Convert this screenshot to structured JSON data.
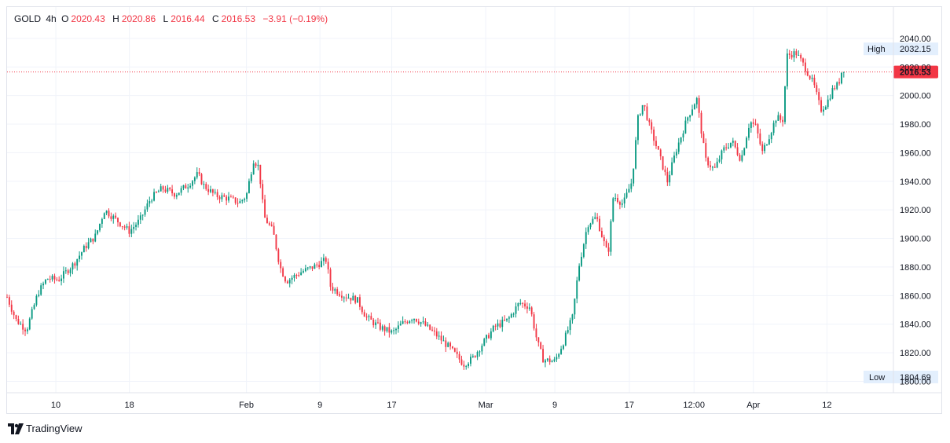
{
  "header": {
    "symbol": "GOLD",
    "interval": "4h",
    "o_label": "O",
    "o_value": "2020.43",
    "h_label": "H",
    "h_value": "2020.86",
    "l_label": "L",
    "l_value": "2016.44",
    "c_label": "C",
    "c_value": "2016.53",
    "change": "−3.91 (−0.19%)"
  },
  "brand": {
    "text": "TradingView"
  },
  "colors": {
    "up": "#089981",
    "down": "#f23645",
    "grid": "#f0f3fa",
    "label_bg": "#e3effd"
  },
  "chart_data": {
    "type": "candlestick",
    "ylim": [
      1792,
      2046
    ],
    "y_ticks": [
      "1800.00",
      "1820.00",
      "1840.00",
      "1860.00",
      "1880.00",
      "1900.00",
      "1920.00",
      "1940.00",
      "1960.00",
      "1980.00",
      "2000.00",
      "2020.00",
      "2040.00"
    ],
    "x_ticks": [
      {
        "label": "10",
        "t": 0.055
      },
      {
        "label": "18",
        "t": 0.138
      },
      {
        "label": "Feb",
        "t": 0.27
      },
      {
        "label": "9",
        "t": 0.353
      },
      {
        "label": "17",
        "t": 0.434
      },
      {
        "label": "Mar",
        "t": 0.54
      },
      {
        "label": "9",
        "t": 0.618
      },
      {
        "label": "17",
        "t": 0.702
      },
      {
        "label": "12:00",
        "t": 0.775
      },
      {
        "label": "Apr",
        "t": 0.842
      },
      {
        "label": "12",
        "t": 0.925
      }
    ],
    "price_path": [
      [
        0.0,
        1859
      ],
      [
        0.01,
        1843
      ],
      [
        0.022,
        1836
      ],
      [
        0.035,
        1862
      ],
      [
        0.045,
        1872
      ],
      [
        0.058,
        1871
      ],
      [
        0.075,
        1882
      ],
      [
        0.088,
        1894
      ],
      [
        0.1,
        1902
      ],
      [
        0.11,
        1920
      ],
      [
        0.125,
        1912
      ],
      [
        0.138,
        1905
      ],
      [
        0.15,
        1913
      ],
      [
        0.162,
        1928
      ],
      [
        0.175,
        1935
      ],
      [
        0.19,
        1931
      ],
      [
        0.205,
        1938
      ],
      [
        0.215,
        1945
      ],
      [
        0.222,
        1937
      ],
      [
        0.235,
        1930
      ],
      [
        0.25,
        1928
      ],
      [
        0.262,
        1925
      ],
      [
        0.27,
        1930
      ],
      [
        0.278,
        1955
      ],
      [
        0.284,
        1950
      ],
      [
        0.29,
        1915
      ],
      [
        0.3,
        1905
      ],
      [
        0.308,
        1880
      ],
      [
        0.315,
        1870
      ],
      [
        0.33,
        1876
      ],
      [
        0.345,
        1880
      ],
      [
        0.36,
        1885
      ],
      [
        0.365,
        1866
      ],
      [
        0.38,
        1860
      ],
      [
        0.395,
        1857
      ],
      [
        0.405,
        1845
      ],
      [
        0.42,
        1838
      ],
      [
        0.435,
        1834
      ],
      [
        0.445,
        1840
      ],
      [
        0.458,
        1845
      ],
      [
        0.47,
        1840
      ],
      [
        0.485,
        1832
      ],
      [
        0.5,
        1823
      ],
      [
        0.515,
        1812
      ],
      [
        0.525,
        1816
      ],
      [
        0.535,
        1825
      ],
      [
        0.55,
        1838
      ],
      [
        0.565,
        1843
      ],
      [
        0.578,
        1855
      ],
      [
        0.59,
        1852
      ],
      [
        0.598,
        1828
      ],
      [
        0.605,
        1815
      ],
      [
        0.618,
        1814
      ],
      [
        0.628,
        1828
      ],
      [
        0.638,
        1845
      ],
      [
        0.645,
        1880
      ],
      [
        0.655,
        1910
      ],
      [
        0.665,
        1915
      ],
      [
        0.672,
        1900
      ],
      [
        0.678,
        1888
      ],
      [
        0.684,
        1930
      ],
      [
        0.695,
        1924
      ],
      [
        0.705,
        1940
      ],
      [
        0.712,
        1985
      ],
      [
        0.718,
        1995
      ],
      [
        0.725,
        1978
      ],
      [
        0.735,
        1960
      ],
      [
        0.745,
        1940
      ],
      [
        0.755,
        1962
      ],
      [
        0.768,
        1985
      ],
      [
        0.778,
        1998
      ],
      [
        0.788,
        1955
      ],
      [
        0.798,
        1948
      ],
      [
        0.808,
        1962
      ],
      [
        0.818,
        1968
      ],
      [
        0.828,
        1955
      ],
      [
        0.838,
        1982
      ],
      [
        0.845,
        1978
      ],
      [
        0.852,
        1960
      ],
      [
        0.86,
        1972
      ],
      [
        0.868,
        1985
      ],
      [
        0.875,
        1982
      ],
      [
        0.88,
        2028
      ],
      [
        0.89,
        2030
      ],
      [
        0.9,
        2020
      ],
      [
        0.91,
        2008
      ],
      [
        0.918,
        1990
      ],
      [
        0.925,
        1995
      ],
      [
        0.932,
        2005
      ],
      [
        0.938,
        2008
      ],
      [
        0.942,
        2018
      ],
      [
        0.944,
        2016.53
      ]
    ],
    "last_price": "2016.53",
    "high": {
      "label": "High",
      "value": "2032.15"
    },
    "low": {
      "label": "Low",
      "value": "1804.69"
    }
  }
}
